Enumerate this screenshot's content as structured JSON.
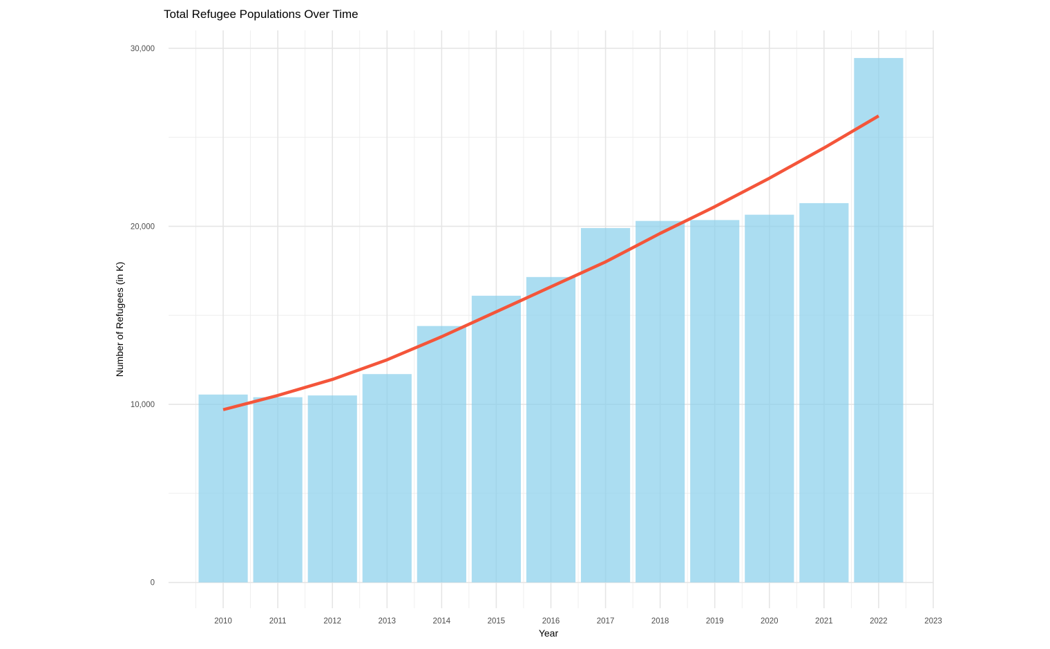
{
  "chart_data": {
    "type": "bar",
    "title": "Total Refugee Populations Over Time",
    "xlabel": "Year",
    "ylabel": "Number of Refugees (in K)",
    "categories": [
      "2010",
      "2011",
      "2012",
      "2013",
      "2014",
      "2015",
      "2016",
      "2017",
      "2018",
      "2019",
      "2020",
      "2021",
      "2022"
    ],
    "x_ticks": [
      "2010",
      "2011",
      "2012",
      "2013",
      "2014",
      "2015",
      "2016",
      "2017",
      "2018",
      "2019",
      "2020",
      "2021",
      "2022",
      "2023"
    ],
    "series": [
      {
        "type": "bar",
        "color": "#87CEEB",
        "values": [
          10550,
          10400,
          10500,
          11700,
          14400,
          16100,
          17150,
          19900,
          20300,
          20350,
          20650,
          21300,
          29450
        ]
      },
      {
        "type": "line",
        "color": "#F4553A",
        "values": [
          9700,
          10500,
          11400,
          12500,
          13800,
          15200,
          16600,
          18000,
          19600,
          21100,
          22700,
          24400,
          26200
        ]
      }
    ],
    "y_ticks": [
      0,
      10000,
      20000,
      30000
    ],
    "y_tick_labels": [
      "0",
      "10,000",
      "20,000",
      "30,000"
    ],
    "x_range": [
      2009.0,
      2023.0
    ],
    "ylim": [
      -1450,
      31000
    ],
    "grid": true,
    "legend": "none",
    "bar_opacity": 0.7
  }
}
